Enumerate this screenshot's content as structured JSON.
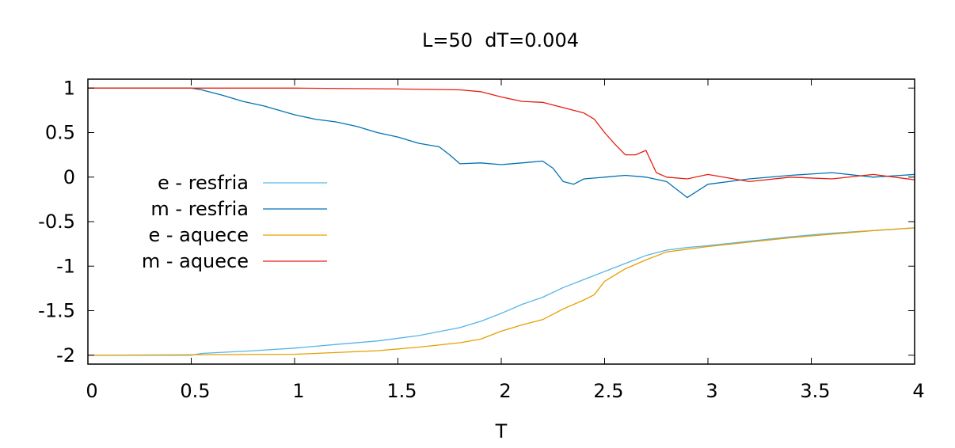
{
  "chart_data": {
    "type": "line",
    "title": "L=50  dT=0.004",
    "xlabel": "T",
    "ylabel": "",
    "xlim": [
      0,
      4
    ],
    "ylim": [
      -2.1,
      1.1
    ],
    "xticks": [
      0,
      0.5,
      1,
      1.5,
      2,
      2.5,
      3,
      3.5,
      4
    ],
    "xtick_labels": [
      "0",
      "0.5",
      "1",
      "1.5",
      "2",
      "2.5",
      "3",
      "3.5",
      "4"
    ],
    "yticks": [
      1,
      0.5,
      0,
      -0.5,
      -1,
      -1.5,
      -2
    ],
    "ytick_labels": [
      "1",
      "0.5",
      "0",
      "-0.5",
      "-1",
      "-1.5",
      "-2"
    ],
    "grid": false,
    "legend_position": "left",
    "series": [
      {
        "name": "e - resfria",
        "color": "#56b4e9",
        "x": [
          0,
          0.5,
          0.55,
          0.8,
          1.0,
          1.2,
          1.4,
          1.6,
          1.8,
          1.9,
          2.0,
          2.1,
          2.2,
          2.3,
          2.4,
          2.5,
          2.6,
          2.7,
          2.8,
          2.9,
          3.0,
          3.2,
          3.4,
          3.6,
          3.8,
          4.0
        ],
        "y": [
          -2.0,
          -2.0,
          -1.98,
          -1.95,
          -1.92,
          -1.88,
          -1.84,
          -1.78,
          -1.69,
          -1.62,
          -1.53,
          -1.43,
          -1.35,
          -1.24,
          -1.15,
          -1.06,
          -0.97,
          -0.88,
          -0.82,
          -0.79,
          -0.77,
          -0.72,
          -0.67,
          -0.63,
          -0.6,
          -0.57
        ]
      },
      {
        "name": "m - resfria",
        "color": "#0072b2",
        "x": [
          0,
          0.5,
          0.55,
          0.65,
          0.75,
          0.85,
          1.0,
          1.1,
          1.2,
          1.3,
          1.4,
          1.5,
          1.6,
          1.7,
          1.75,
          1.8,
          1.9,
          2.0,
          2.1,
          2.2,
          2.25,
          2.3,
          2.35,
          2.4,
          2.5,
          2.6,
          2.7,
          2.8,
          2.9,
          3.0,
          3.2,
          3.4,
          3.6,
          3.8,
          4.0
        ],
        "y": [
          1.0,
          1.0,
          0.98,
          0.92,
          0.85,
          0.8,
          0.7,
          0.65,
          0.62,
          0.57,
          0.5,
          0.45,
          0.38,
          0.34,
          0.25,
          0.15,
          0.16,
          0.14,
          0.16,
          0.18,
          0.1,
          -0.05,
          -0.08,
          -0.02,
          0.0,
          0.02,
          0.0,
          -0.05,
          -0.23,
          -0.08,
          -0.02,
          0.02,
          0.05,
          0.0,
          0.03
        ]
      },
      {
        "name": "e - aquece",
        "color": "#e69f00",
        "x": [
          0,
          1.0,
          1.2,
          1.4,
          1.6,
          1.8,
          1.9,
          2.0,
          2.1,
          2.2,
          2.3,
          2.4,
          2.45,
          2.5,
          2.6,
          2.7,
          2.8,
          2.9,
          3.0,
          3.2,
          3.4,
          3.6,
          3.8,
          4.0
        ],
        "y": [
          -2.0,
          -1.99,
          -1.97,
          -1.95,
          -1.91,
          -1.86,
          -1.82,
          -1.73,
          -1.66,
          -1.6,
          -1.48,
          -1.38,
          -1.32,
          -1.17,
          -1.03,
          -0.93,
          -0.84,
          -0.81,
          -0.78,
          -0.73,
          -0.68,
          -0.64,
          -0.6,
          -0.57
        ]
      },
      {
        "name": "m - aquece",
        "color": "#e51e10",
        "x": [
          0,
          0.5,
          1.0,
          1.5,
          1.8,
          1.9,
          2.0,
          2.1,
          2.2,
          2.3,
          2.4,
          2.45,
          2.5,
          2.55,
          2.6,
          2.65,
          2.7,
          2.75,
          2.8,
          2.9,
          3.0,
          3.2,
          3.4,
          3.6,
          3.8,
          4.0
        ],
        "y": [
          1.0,
          1.0,
          1.0,
          0.99,
          0.98,
          0.96,
          0.9,
          0.85,
          0.84,
          0.78,
          0.72,
          0.65,
          0.5,
          0.37,
          0.25,
          0.25,
          0.3,
          0.05,
          0.0,
          -0.02,
          0.03,
          -0.05,
          0.0,
          -0.02,
          0.03,
          -0.03
        ]
      }
    ]
  }
}
